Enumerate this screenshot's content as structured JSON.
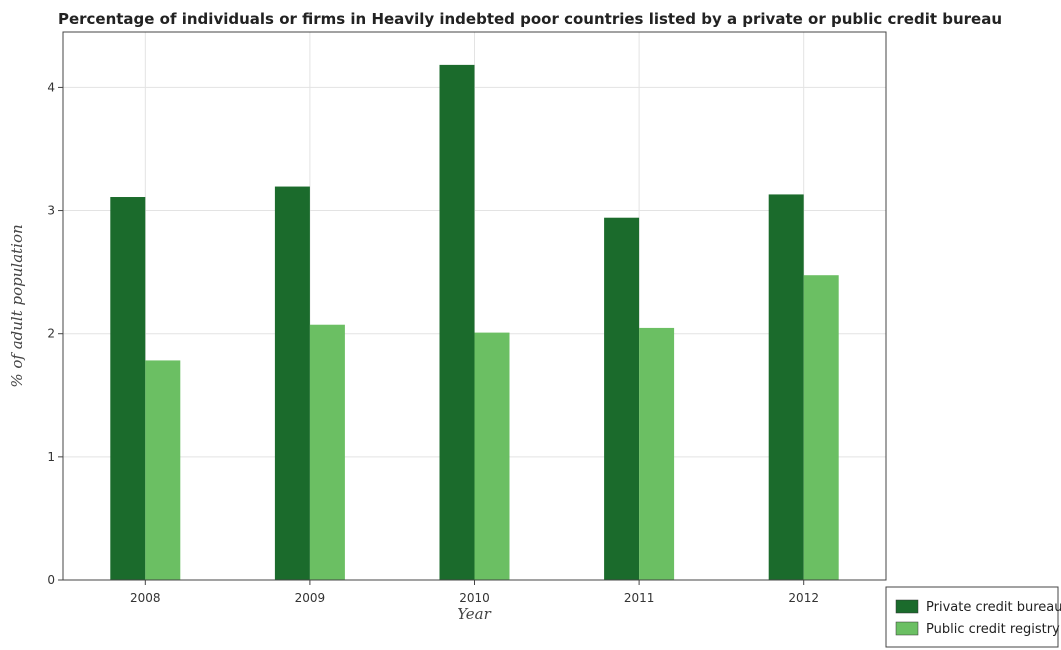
{
  "chart_data": {
    "type": "bar",
    "title": "Percentage of individuals or firms in Heavily indebted poor countries listed by a private or public credit bureau",
    "xlabel": "Year",
    "ylabel": "% of adult population",
    "categories": [
      "2008",
      "2009",
      "2010",
      "2011",
      "2012"
    ],
    "series": [
      {
        "name": "Private credit bureau",
        "color": "#1b6b2c",
        "values": [
          3.11,
          3.195,
          4.183,
          2.942,
          3.131
        ]
      },
      {
        "name": "Public credit registry",
        "color": "#6bbf63",
        "values": [
          1.783,
          2.073,
          2.009,
          2.047,
          2.475
        ]
      }
    ],
    "ylim": [
      0,
      4.45
    ],
    "yticks": [
      "0",
      "1",
      "2",
      "3",
      "4"
    ],
    "grid": true,
    "legend_position": "bottom-right"
  }
}
